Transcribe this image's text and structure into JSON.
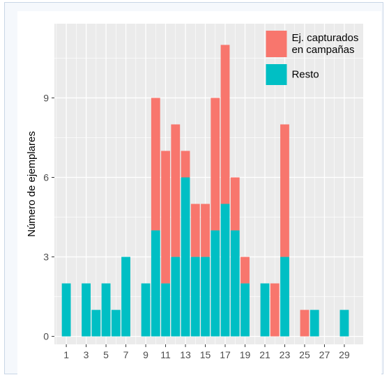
{
  "chart_data": {
    "type": "bar",
    "stacked": true,
    "x": [
      1,
      3,
      4,
      5,
      6,
      7,
      9,
      10,
      11,
      12,
      13,
      14,
      15,
      16,
      17,
      18,
      19,
      21,
      22,
      23,
      25,
      26,
      29
    ],
    "series": [
      {
        "name": "Resto",
        "color": "#00BFC4",
        "values": [
          2,
          2,
          1,
          2,
          1,
          3,
          2,
          4,
          2,
          3,
          6,
          3,
          3,
          4,
          5,
          4,
          2,
          2,
          0,
          3,
          0,
          1,
          1
        ]
      },
      {
        "name": "Ej. capturados en campañas",
        "color": "#F8766D",
        "values": [
          0,
          0,
          0,
          0,
          0,
          0,
          0,
          5,
          5,
          5,
          1,
          2,
          2,
          5,
          6,
          2,
          1,
          0,
          2,
          5,
          1,
          0,
          0
        ]
      }
    ],
    "legend": {
      "position": "top-right",
      "order": [
        "Ej. capturados en campañas",
        "Resto"
      ],
      "labels": [
        [
          "Ej. capturados",
          "en campañas"
        ],
        [
          "Resto"
        ]
      ]
    },
    "xticks": [
      1,
      3,
      5,
      7,
      9,
      11,
      13,
      15,
      17,
      19,
      21,
      23,
      25,
      27,
      29
    ],
    "yticks": [
      0,
      3,
      6,
      9
    ],
    "xlim": [
      -0.2,
      30.9
    ],
    "ylim": [
      -0.3,
      11.8
    ],
    "xlabel": "",
    "ylabel": "Número de ejemplares",
    "grid": true,
    "panel_background": "#EBEBEB"
  }
}
